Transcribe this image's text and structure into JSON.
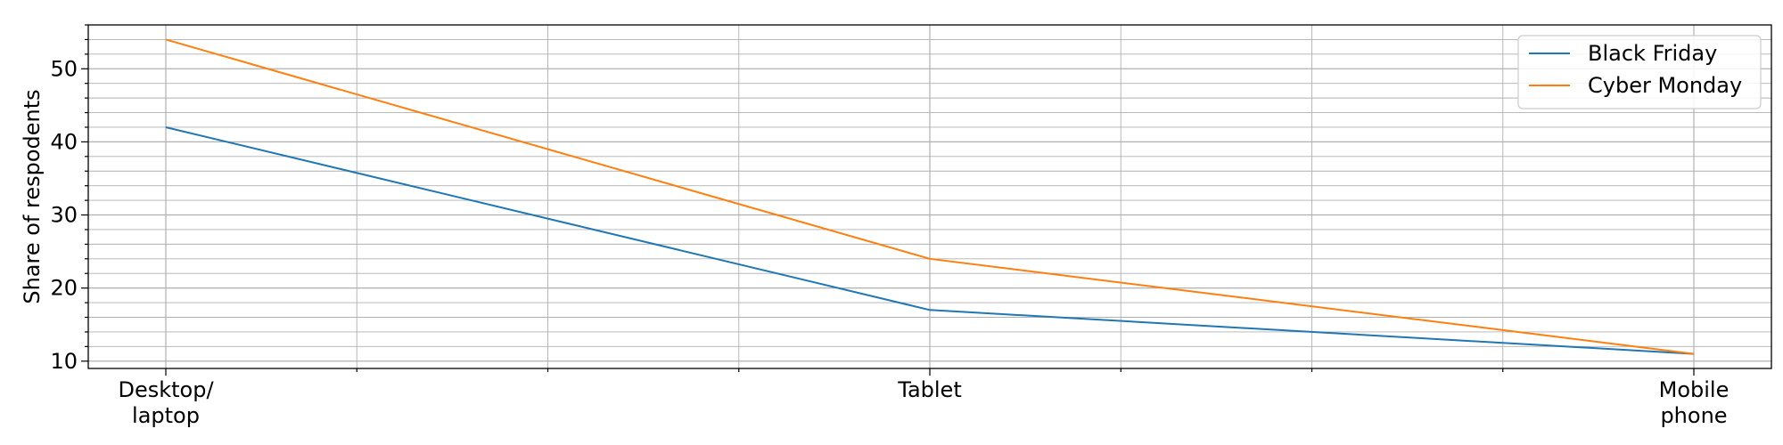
{
  "chart_data": {
    "type": "line",
    "title": "",
    "xlabel": "",
    "ylabel": "Share of respodents",
    "categories": [
      "Desktop/\nlaptop",
      "Tablet",
      "Mobile\nphone"
    ],
    "series": [
      {
        "name": "Black Friday",
        "values": [
          42,
          17,
          11
        ],
        "color": "#1f77b4"
      },
      {
        "name": "Cyber Monday",
        "values": [
          54,
          24,
          11
        ],
        "color": "#ff7f0e"
      }
    ],
    "ylim": [
      9,
      56
    ],
    "yticks": [
      10,
      20,
      30,
      40,
      50
    ],
    "yminor_step": 2,
    "xminor_per_interval": 4,
    "grid": true,
    "grid_color": "#b0b0b0",
    "legend": "top-right"
  }
}
